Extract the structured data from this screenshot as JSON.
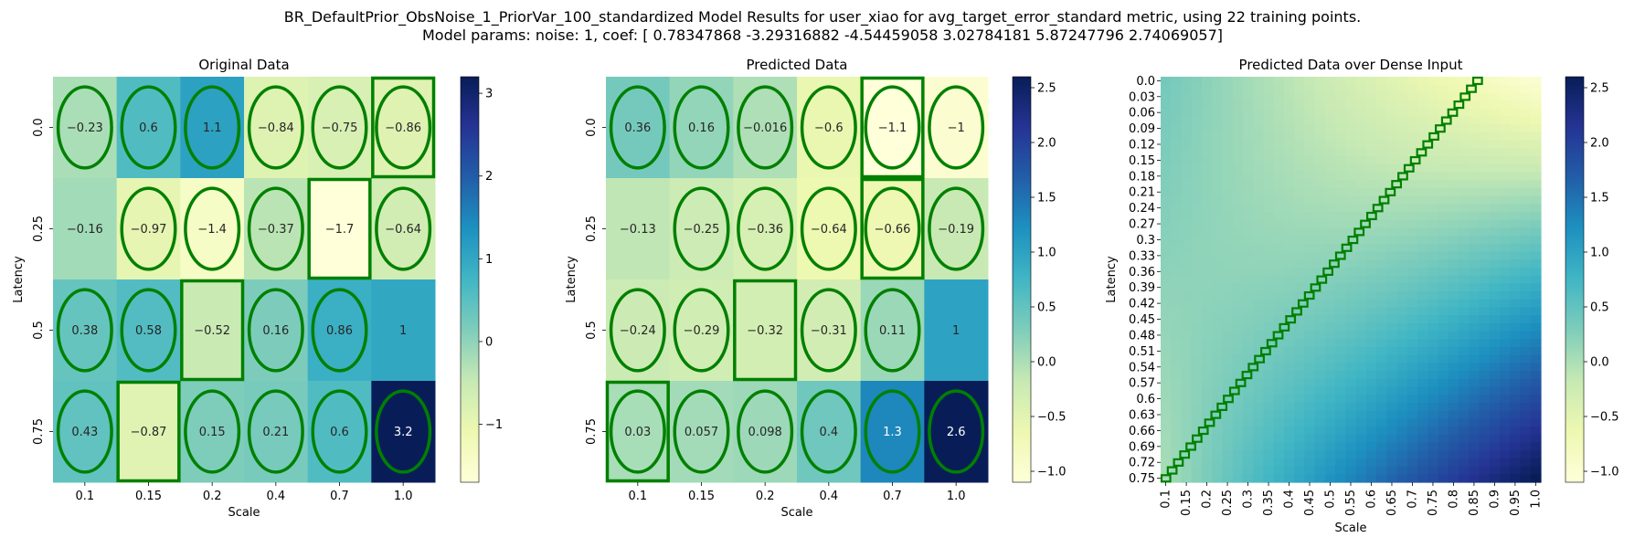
{
  "suptitle_line1": "BR_DefaultPrior_ObsNoise_1_PriorVar_100_standardized Model Results for user_xiao for avg_target_error_standard metric, using 22 training points.",
  "suptitle_line2": "Model params: noise: 1, coef: [ 0.78347868 -3.29316882 -4.54459058  3.02784181  5.87247796  2.74069057]",
  "colormap": "YlGnBu",
  "marker_color": "#008000",
  "chart_data": [
    {
      "type": "heatmap",
      "title": "Original Data",
      "xlabel": "Scale",
      "ylabel": "Latency",
      "x": [
        "0.1",
        "0.15",
        "0.2",
        "0.4",
        "0.7",
        "1.0"
      ],
      "y": [
        "0.0",
        "0.25",
        "0.5",
        "0.75"
      ],
      "values": [
        [
          -0.23,
          0.6,
          1.1,
          -0.84,
          -0.75,
          -0.86
        ],
        [
          -0.16,
          -0.97,
          -1.4,
          -0.37,
          -1.7,
          -0.64
        ],
        [
          0.38,
          0.58,
          -0.52,
          0.16,
          0.86,
          1
        ],
        [
          0.43,
          -0.87,
          0.15,
          0.21,
          0.6,
          3.2
        ]
      ],
      "labels": [
        [
          "-0.23",
          "0.6",
          "1.1",
          "-0.84",
          "-0.75",
          "-0.86"
        ],
        [
          "-0.16",
          "-0.97",
          "-1.4",
          "-0.37",
          "-1.7",
          "-0.64"
        ],
        [
          "0.38",
          "0.58",
          "-0.52",
          "0.16",
          "0.86",
          "1"
        ],
        [
          "0.43",
          "-0.87",
          "0.15",
          "0.21",
          "0.6",
          "3.2"
        ]
      ],
      "ellipses": [
        [
          1,
          1,
          1,
          1,
          1,
          1
        ],
        [
          0,
          1,
          1,
          1,
          0,
          1
        ],
        [
          1,
          1,
          0,
          1,
          1,
          0
        ],
        [
          1,
          0,
          1,
          1,
          1,
          1
        ]
      ],
      "rectangles": [
        [
          0,
          5
        ],
        [
          1,
          4
        ],
        [
          2,
          2
        ],
        [
          3,
          1
        ]
      ],
      "vmin": -1.7,
      "vmax": 3.2,
      "colorbar_ticks": [
        "-1",
        "0",
        "1",
        "2",
        "3"
      ]
    },
    {
      "type": "heatmap",
      "title": "Predicted Data",
      "xlabel": "Scale",
      "ylabel": "Latency",
      "x": [
        "0.1",
        "0.15",
        "0.2",
        "0.4",
        "0.7",
        "1.0"
      ],
      "y": [
        "0.0",
        "0.25",
        "0.5",
        "0.75"
      ],
      "values": [
        [
          0.36,
          0.16,
          -0.016,
          -0.6,
          -1.1,
          -1
        ],
        [
          -0.13,
          -0.25,
          -0.36,
          -0.64,
          -0.66,
          -0.19
        ],
        [
          -0.24,
          -0.29,
          -0.32,
          -0.31,
          0.11,
          1
        ],
        [
          0.03,
          0.057,
          0.098,
          0.4,
          1.3,
          2.6
        ]
      ],
      "labels": [
        [
          "0.36",
          "0.16",
          "-0.016",
          "-0.6",
          "-1.1",
          "-1"
        ],
        [
          "-0.13",
          "-0.25",
          "-0.36",
          "-0.64",
          "-0.66",
          "-0.19"
        ],
        [
          "-0.24",
          "-0.29",
          "-0.32",
          "-0.31",
          "0.11",
          "1"
        ],
        [
          "0.03",
          "0.057",
          "0.098",
          "0.4",
          "1.3",
          "2.6"
        ]
      ],
      "ellipses": [
        [
          1,
          1,
          1,
          1,
          1,
          1
        ],
        [
          0,
          1,
          1,
          1,
          1,
          1
        ],
        [
          1,
          1,
          0,
          1,
          1,
          0
        ],
        [
          1,
          1,
          1,
          1,
          1,
          1
        ]
      ],
      "rectangles": [
        [
          0,
          4
        ],
        [
          1,
          4
        ],
        [
          2,
          2
        ],
        [
          3,
          0
        ]
      ],
      "vmin": -1.1,
      "vmax": 2.6,
      "colorbar_ticks": [
        "-1.0",
        "-0.5",
        "0.0",
        "0.5",
        "1.0",
        "1.5",
        "2.0",
        "2.5"
      ]
    },
    {
      "type": "heatmap",
      "title": "Predicted Data over Dense Input",
      "xlabel": "Scale",
      "ylabel": "Latency",
      "x": [
        "0.1",
        "0.15",
        "0.2",
        "0.25",
        "0.3",
        "0.35",
        "0.4",
        "0.45",
        "0.5",
        "0.55",
        "0.6",
        "0.65",
        "0.7",
        "0.75",
        "0.8",
        "0.85",
        "0.9",
        "0.95",
        "1.0"
      ],
      "y": [
        "0.0",
        "0.03",
        "0.06",
        "0.09",
        "0.12",
        "0.15",
        "0.18",
        "0.21",
        "0.24",
        "0.27",
        "0.3",
        "0.33",
        "0.36",
        "0.39",
        "0.42",
        "0.45",
        "0.48",
        "0.51",
        "0.54",
        "0.57",
        "0.6",
        "0.63",
        "0.66",
        "0.69",
        "0.72",
        "0.75"
      ],
      "dense_grid": {
        "x_min": 0.1,
        "x_max": 1.0,
        "x_count": 37,
        "y_min": 0.0,
        "y_max": 0.75,
        "y_count": 51
      },
      "corner_values": {
        "x0_y0": 0.36,
        "x1_y0": -1.0,
        "x0_y1": 0.03,
        "x1_y1": 2.6
      },
      "diagonal_marker": "stepped green rectangles from (Scale 0.1, Latency 0.75) to (Scale 0.85, Latency 0.0)",
      "vmin": -1.1,
      "vmax": 2.6,
      "colorbar_ticks": [
        "-1.0",
        "-0.5",
        "0.0",
        "0.5",
        "1.0",
        "1.5",
        "2.0",
        "2.5"
      ]
    }
  ]
}
